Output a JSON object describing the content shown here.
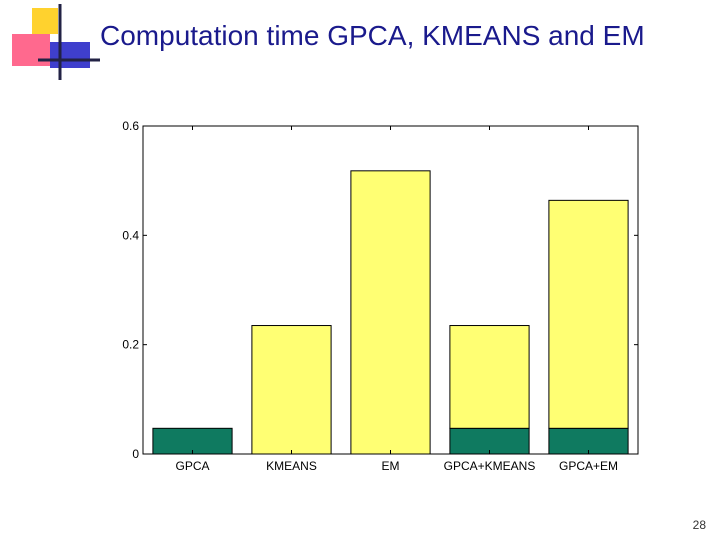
{
  "slide": {
    "title": "Computation time GPCA, KMEANS and EM",
    "page_number": "28"
  },
  "colors": {
    "title": "#1a1a8c",
    "gpca_segment": "#0f7a60",
    "other_segment": "#ffff73",
    "logo_yellow": "#ffd22e",
    "logo_pink": "#ff4f7a",
    "logo_blue": "#2a2ac8"
  },
  "chart_data": {
    "type": "bar",
    "stacked": true,
    "categories": [
      "GPCA",
      "KMEANS",
      "EM",
      "GPCA+KMEANS",
      "GPCA+EM"
    ],
    "series": [
      {
        "values": [
          0.047,
          0,
          0,
          0.047,
          0.047
        ],
        "color": "#0f7a60"
      },
      {
        "values": [
          0,
          0.235,
          0.518,
          0.188,
          0.417
        ],
        "color": "#ffff73"
      }
    ],
    "yticks": [
      0,
      0.2,
      0.4,
      0.6
    ],
    "ytick_labels": [
      "0",
      "0.2",
      "0.4",
      "0.6"
    ],
    "ylim": [
      0,
      0.6
    ],
    "xlabel": "",
    "ylabel": "",
    "grid": false
  }
}
